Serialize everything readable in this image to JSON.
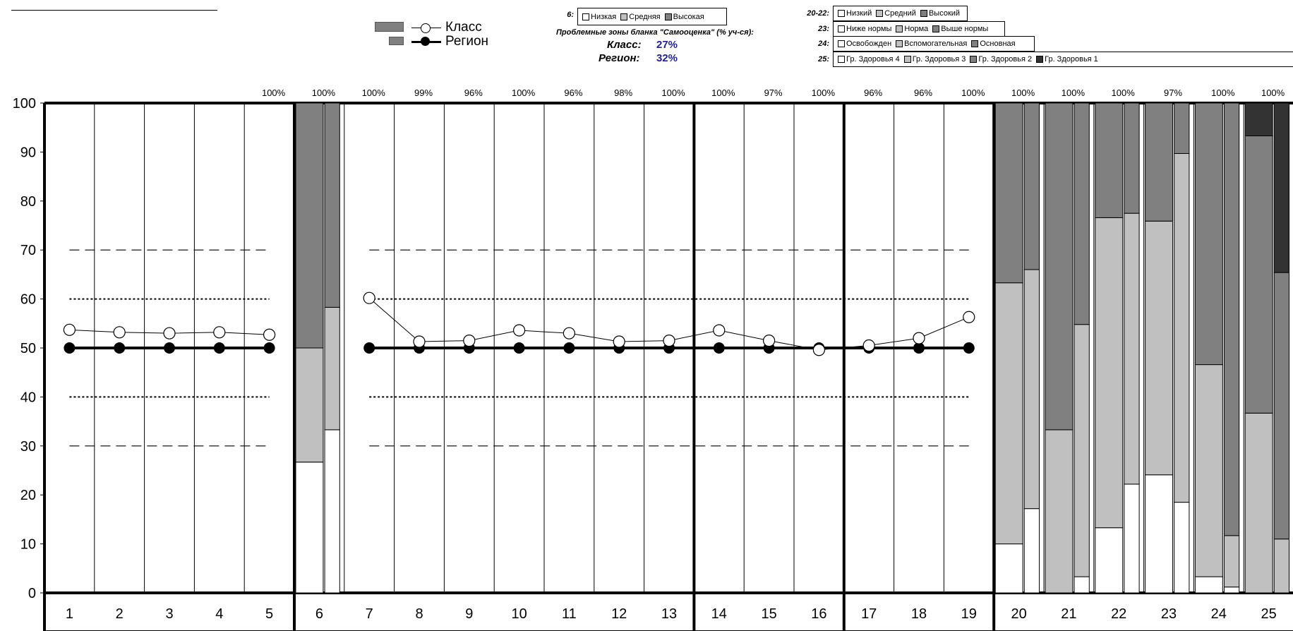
{
  "chart_data": {
    "type": "line",
    "ylim": [
      0,
      100
    ],
    "y_ticks": [
      "0",
      "10",
      "20",
      "30",
      "40",
      "50",
      "60",
      "70",
      "80",
      "90",
      "100"
    ],
    "categories": [
      "1",
      "2",
      "3",
      "4",
      "5",
      "6",
      "7",
      "8",
      "9",
      "10",
      "11",
      "12",
      "13",
      "14",
      "15",
      "16",
      "17",
      "18",
      "19",
      "20",
      "21",
      "22",
      "23",
      "24",
      "25"
    ],
    "top_percent": [
      "",
      "",
      "",
      "",
      "100%",
      "100%",
      "100%",
      "99%",
      "96%",
      "100%",
      "96%",
      "98%",
      "100%",
      "100%",
      "97%",
      "100%",
      "96%",
      "96%",
      "100%",
      "100%",
      "100%",
      "100%",
      "97%",
      "100%",
      "100%"
    ],
    "series": [
      {
        "name": "Класс",
        "x": [
          1,
          2,
          3,
          4,
          5,
          7,
          8,
          9,
          10,
          11,
          12,
          13,
          14,
          15,
          16,
          17,
          18,
          19
        ],
        "values": [
          53.7,
          53.2,
          53.0,
          53.2,
          52.7,
          60.2,
          51.3,
          51.5,
          53.6,
          53.0,
          51.3,
          51.5,
          53.6,
          51.5,
          49.6,
          50.5,
          52.0,
          56.3
        ],
        "marker": "open-circle"
      },
      {
        "name": "Регион",
        "x": [
          1,
          2,
          3,
          4,
          5,
          7,
          8,
          9,
          10,
          11,
          12,
          13,
          14,
          15,
          16,
          17,
          18,
          19
        ],
        "values": [
          50,
          50,
          50,
          50,
          50,
          50,
          50,
          50,
          50,
          50,
          50,
          50,
          50,
          50,
          50,
          50,
          50,
          50
        ],
        "marker": "filled-circle"
      }
    ],
    "reference_lines": [
      30,
      40,
      60,
      70
    ],
    "stacked_bars": [
      {
        "category": "6",
        "class": [
          26.7,
          23.3,
          50.0
        ],
        "region": [
          33.3,
          25.0,
          41.7
        ]
      },
      {
        "category": "20",
        "class": [
          10.0,
          53.3,
          36.7
        ],
        "region": [
          17.2,
          48.8,
          34.0
        ]
      },
      {
        "category": "21",
        "class": [
          0.0,
          33.3,
          66.7
        ],
        "region": [
          3.3,
          51.5,
          45.2
        ]
      },
      {
        "category": "22",
        "class": [
          13.3,
          63.3,
          23.4
        ],
        "region": [
          22.2,
          55.3,
          22.5
        ]
      },
      {
        "category": "23",
        "class": [
          24.1,
          51.8,
          24.1
        ],
        "region": [
          18.5,
          71.2,
          10.3
        ]
      },
      {
        "category": "24",
        "class": [
          3.3,
          43.3,
          53.4
        ],
        "region": [
          1.2,
          10.5,
          88.3
        ]
      },
      {
        "category": "25",
        "class": [
          0.0,
          36.7,
          56.6,
          6.7
        ],
        "region": [
          0.0,
          11.0,
          54.4,
          34.6
        ]
      }
    ],
    "colors": {
      "white": "#ffffff",
      "light": "#c0c0c0",
      "medium": "#808080",
      "dark": "#404040",
      "darkest": "#333333"
    }
  },
  "legend_main": {
    "class_label": "Класс",
    "region_label": "Регион"
  },
  "header": {
    "problem_zones_title": "Проблемные зоны бланка \"Самооценка\" (% уч-ся):",
    "class_label": "Класс:",
    "class_value": "27%",
    "region_label": "Регион:",
    "region_value": "32%"
  },
  "legends": [
    {
      "key": "6:",
      "items": [
        "Низкая",
        "Средняя",
        "Высокая"
      ]
    },
    {
      "key": "20-22:",
      "items": [
        "Низкий",
        "Средний",
        "Высокий"
      ]
    },
    {
      "key": "23:",
      "items": [
        "Ниже нормы",
        "Норма",
        "Выше нормы"
      ]
    },
    {
      "key": "24:",
      "items": [
        "Освобожден",
        "Вспомогательная",
        "Основная"
      ]
    },
    {
      "key": "25:",
      "items": [
        "Гр. Здоровья 4",
        "Гр. Здоровья 3",
        "Гр. Здоровья 2",
        "Гр. Здоровья 1"
      ]
    }
  ]
}
